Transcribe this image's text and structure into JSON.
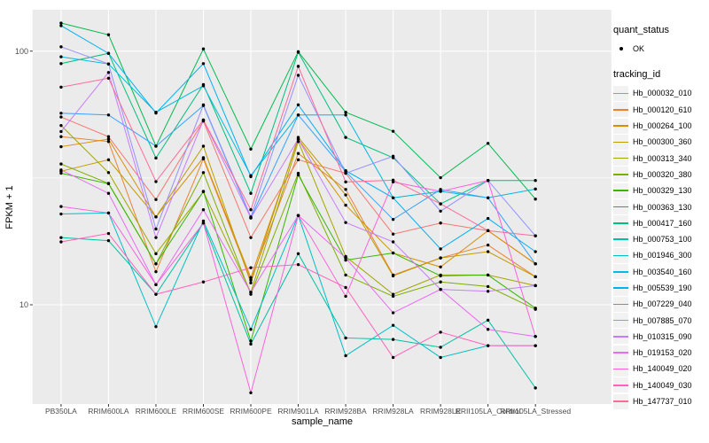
{
  "y_axis": {
    "title": "FPKM + 1",
    "ticks": [
      "100",
      "10"
    ]
  },
  "x_axis": {
    "title": "sample_name"
  },
  "legend": {
    "quant_status_title": "quant_status",
    "quant_status_items": [
      {
        "label": "OK",
        "symbol": "black-point"
      }
    ],
    "tracking_title": "tracking_id"
  },
  "colors": {
    "panel_bg": "#EBEBEB",
    "grid": "#FFFFFF",
    "tick_text": "#4D4D4D",
    "axis_text": "#000000",
    "point": "#000000",
    "legend_key_bg": "#F2F2F2"
  },
  "chart_data": {
    "type": "line",
    "title": "",
    "xlabel": "sample_name",
    "ylabel": "FPKM + 1",
    "y_scale": "log10",
    "ylim": [
      4,
      135
    ],
    "y_major_ticks": [
      100,
      10
    ],
    "y_minor_ticks": [
      31.62
    ],
    "grid": "white-on-gray",
    "legend_position": "right",
    "point_marker": "black-dot",
    "categories": [
      "PB350LA",
      "RRIM600LA",
      "RRIM600LE",
      "RRIM600SE",
      "RRIM600PE",
      "RRIM901LA",
      "RRIM928BA",
      "RRIM928LA",
      "RRIM928LE",
      "RRII105LA_Control",
      "RRII105LA_Stressed"
    ],
    "series": [
      {
        "name": "Hb_000032_010",
        "color": "#F8766D",
        "values": [
          55,
          46,
          26,
          53,
          18.4,
          37.3,
          33,
          19,
          21,
          19.6,
          14.5
        ]
      },
      {
        "name": "Hb_000120_610",
        "color": "#EA8331",
        "values": [
          46,
          44,
          13.5,
          37.6,
          12.5,
          39.5,
          28.5,
          13.1,
          15.3,
          17.2,
          12.9
        ]
      },
      {
        "name": "Hb_000264_100",
        "color": "#D89000",
        "values": [
          42,
          45,
          22.2,
          38,
          12.8,
          45,
          24.7,
          16,
          14.1,
          19.6,
          14.5
        ]
      },
      {
        "name": "Hb_000300_360",
        "color": "#C09B00",
        "values": [
          33.6,
          37.3,
          22.2,
          42.2,
          12.2,
          45.7,
          27.1,
          13,
          15.3,
          16.2,
          12.9
        ]
      },
      {
        "name": "Hb_000313_340",
        "color": "#A3A500",
        "values": [
          50.9,
          33.2,
          15.9,
          27.9,
          11.2,
          44,
          15.5,
          11,
          13.1,
          13.1,
          11.9
        ]
      },
      {
        "name": "Hb_000320_380",
        "color": "#7CAE00",
        "values": [
          35.9,
          30.1,
          14.5,
          33.2,
          11,
          33,
          13.1,
          10.8,
          12.3,
          11.8,
          9.6
        ]
      },
      {
        "name": "Hb_000329_130",
        "color": "#39B600",
        "values": [
          33,
          30,
          14.5,
          28,
          7.2,
          32.5,
          15,
          16,
          13,
          13.1,
          9.7
        ]
      },
      {
        "name": "Hb_000363_130",
        "color": "#00BB4E",
        "values": [
          129,
          116,
          42.2,
          102,
          41.1,
          99.5,
          57.4,
          48.3,
          31.7,
          43.3,
          26.1
        ]
      },
      {
        "name": "Hb_000417_160",
        "color": "#00BF7D",
        "values": [
          89.3,
          98,
          37.9,
          73.8,
          27.5,
          99,
          45.7,
          38,
          25,
          30.9,
          30.9
        ]
      },
      {
        "name": "Hb_000753_100",
        "color": "#00C1A3",
        "values": [
          18.4,
          17.9,
          11,
          21,
          7,
          15.9,
          7.4,
          7.3,
          6.8,
          8.7,
          4.7
        ]
      },
      {
        "name": "Hb_001946_300",
        "color": "#00BFC4",
        "values": [
          22.8,
          23,
          8.2,
          21.4,
          8,
          22.5,
          6.3,
          8.3,
          6.2,
          6.9,
          6.9
        ]
      },
      {
        "name": "Hb_003540_160",
        "color": "#00BAE0",
        "values": [
          95,
          89,
          57.4,
          73,
          32.3,
          56,
          56,
          26.4,
          28,
          26.4,
          28.6
        ]
      },
      {
        "name": "Hb_005539_190",
        "color": "#00B0F6",
        "values": [
          126,
          98,
          57,
          89.3,
          32,
          61.4,
          33.8,
          26.4,
          16.6,
          21.9,
          16.2
        ]
      },
      {
        "name": "Hb_007229_040",
        "color": "#35A2FF",
        "values": [
          56.9,
          56,
          42.2,
          61,
          22,
          56,
          33.5,
          21.7,
          28.5,
          26.4,
          14.5
        ]
      },
      {
        "name": "Hb_007885_070",
        "color": "#9590FF",
        "values": [
          104,
          89,
          19.9,
          61.4,
          22.2,
          80.3,
          33,
          38.5,
          23.4,
          30.9,
          18.7
        ]
      },
      {
        "name": "Hb_010315_090",
        "color": "#C77CFF",
        "values": [
          48.2,
          82.4,
          18.4,
          53.5,
          22,
          45,
          21.1,
          17.7,
          11.5,
          11.3,
          11.9
        ]
      },
      {
        "name": "Hb_019153_020",
        "color": "#E76BF3",
        "values": [
          34,
          27.5,
          12,
          23.7,
          11.2,
          22.5,
          15.3,
          9.3,
          11.5,
          8,
          7.5
        ]
      },
      {
        "name": "Hb_140049_020",
        "color": "#FA62DB",
        "values": [
          24.4,
          23,
          12,
          21,
          4.5,
          22.5,
          10.8,
          30.5,
          28,
          30.9,
          7.5
        ]
      },
      {
        "name": "Hb_140049_030",
        "color": "#FF62BC",
        "values": [
          17.7,
          19.1,
          11,
          12.3,
          14,
          14.4,
          11.7,
          6.2,
          7.8,
          6.9,
          6.9
        ]
      },
      {
        "name": "Hb_147737_010",
        "color": "#FF6A98",
        "values": [
          72.1,
          78.2,
          30.6,
          53.5,
          23.7,
          87.1,
          30.5,
          31,
          25,
          19.6,
          18.7
        ]
      }
    ]
  }
}
